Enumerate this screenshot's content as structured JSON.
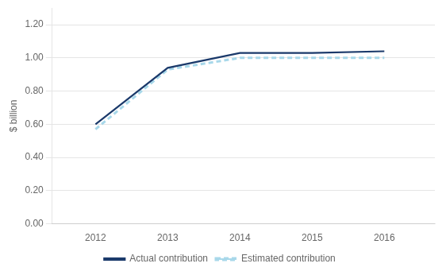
{
  "chart_data": {
    "type": "line",
    "y_label": "$ billion",
    "x": [
      2012,
      2013,
      2014,
      2015,
      2016
    ],
    "series": [
      {
        "name": "Estimated contribution",
        "color": "#a8d8ea",
        "line_style": "dashed",
        "values": [
          0.57,
          0.93,
          1.0,
          1.0,
          1.0
        ]
      },
      {
        "name": "Actual contribution",
        "color": "#1b3a6b",
        "line_style": "solid",
        "values": [
          0.6,
          0.94,
          1.03,
          1.03,
          1.04
        ]
      }
    ],
    "xlim": [
      2011.4,
      2016.7
    ],
    "xticks": [
      2012,
      2013,
      2014,
      2015,
      2016
    ],
    "ylim": [
      0.0,
      1.3
    ],
    "yticks": [
      {
        "value": 0.0,
        "label": "0.00"
      },
      {
        "value": 0.2,
        "label": "0.20"
      },
      {
        "value": 0.4,
        "label": "0.40"
      },
      {
        "value": 0.6,
        "label": "0.60"
      },
      {
        "value": 0.8,
        "label": "0.80"
      },
      {
        "value": 1.0,
        "label": "1.00"
      },
      {
        "value": 1.2,
        "label": "1.20"
      }
    ],
    "grid": "y",
    "legend": "bottom"
  }
}
